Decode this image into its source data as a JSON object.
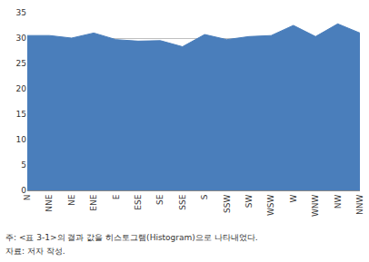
{
  "chart_data": {
    "type": "area",
    "categories": [
      "N",
      "NNE",
      "NE",
      "ENE",
      "E",
      "ESE",
      "SE",
      "SSE",
      "S",
      "SSW",
      "SW",
      "WSW",
      "W",
      "WNW",
      "NW",
      "NNW"
    ],
    "values": [
      30.5,
      30.5,
      30.0,
      31.0,
      29.7,
      29.4,
      29.5,
      28.3,
      30.7,
      29.7,
      30.3,
      30.5,
      32.5,
      30.3,
      32.8,
      31.0
    ],
    "color": "#4a7ebb",
    "ylim": [
      0,
      35
    ],
    "yticks": [
      0,
      5,
      10,
      15,
      20,
      25,
      30,
      35
    ],
    "grid": true,
    "annotations": [
      "주: <표 3-1>의 결과 값을 히스토그램(Histogram)으로 나타내었다.",
      "자료: 저자 작성."
    ]
  }
}
